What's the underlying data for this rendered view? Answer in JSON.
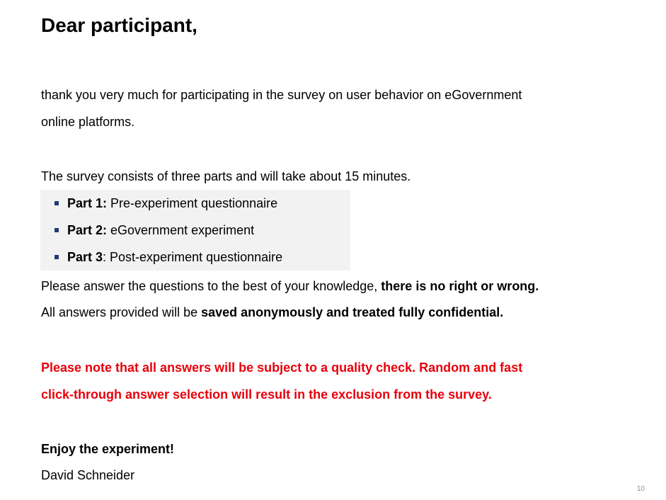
{
  "title": "Dear participant,",
  "intro": {
    "line1": "thank you very much for participating in the survey on user behavior on eGovernment",
    "line2": "online platforms."
  },
  "survey_info": "The survey consists of three parts and will take about 15 minutes.",
  "parts": [
    {
      "label": "Part 1:",
      "text": " Pre-experiment questionnaire"
    },
    {
      "label": "Part 2:",
      "text": " eGovernment experiment"
    },
    {
      "label": "Part 3",
      "text": ": Post-experiment questionnaire"
    }
  ],
  "answer_note": {
    "prefix": "Please answer the questions to the best of your knowledge, ",
    "bold": "there is no right or wrong."
  },
  "anonymity_note": {
    "prefix": "All answers provided will be ",
    "bold": "saved anonymously and treated fully confidential."
  },
  "warning": {
    "line1": "Please note that all answers will be subject to a quality check. Random and fast",
    "line2": "click-through answer selection will result in the exclusion from the survey."
  },
  "closing": "Enjoy the experiment!",
  "signature": "David Schneider",
  "page_number": "10",
  "colors": {
    "warning": "#e8000b",
    "bullet": "#1f3b73",
    "parts_background": "#f2f2f2"
  }
}
